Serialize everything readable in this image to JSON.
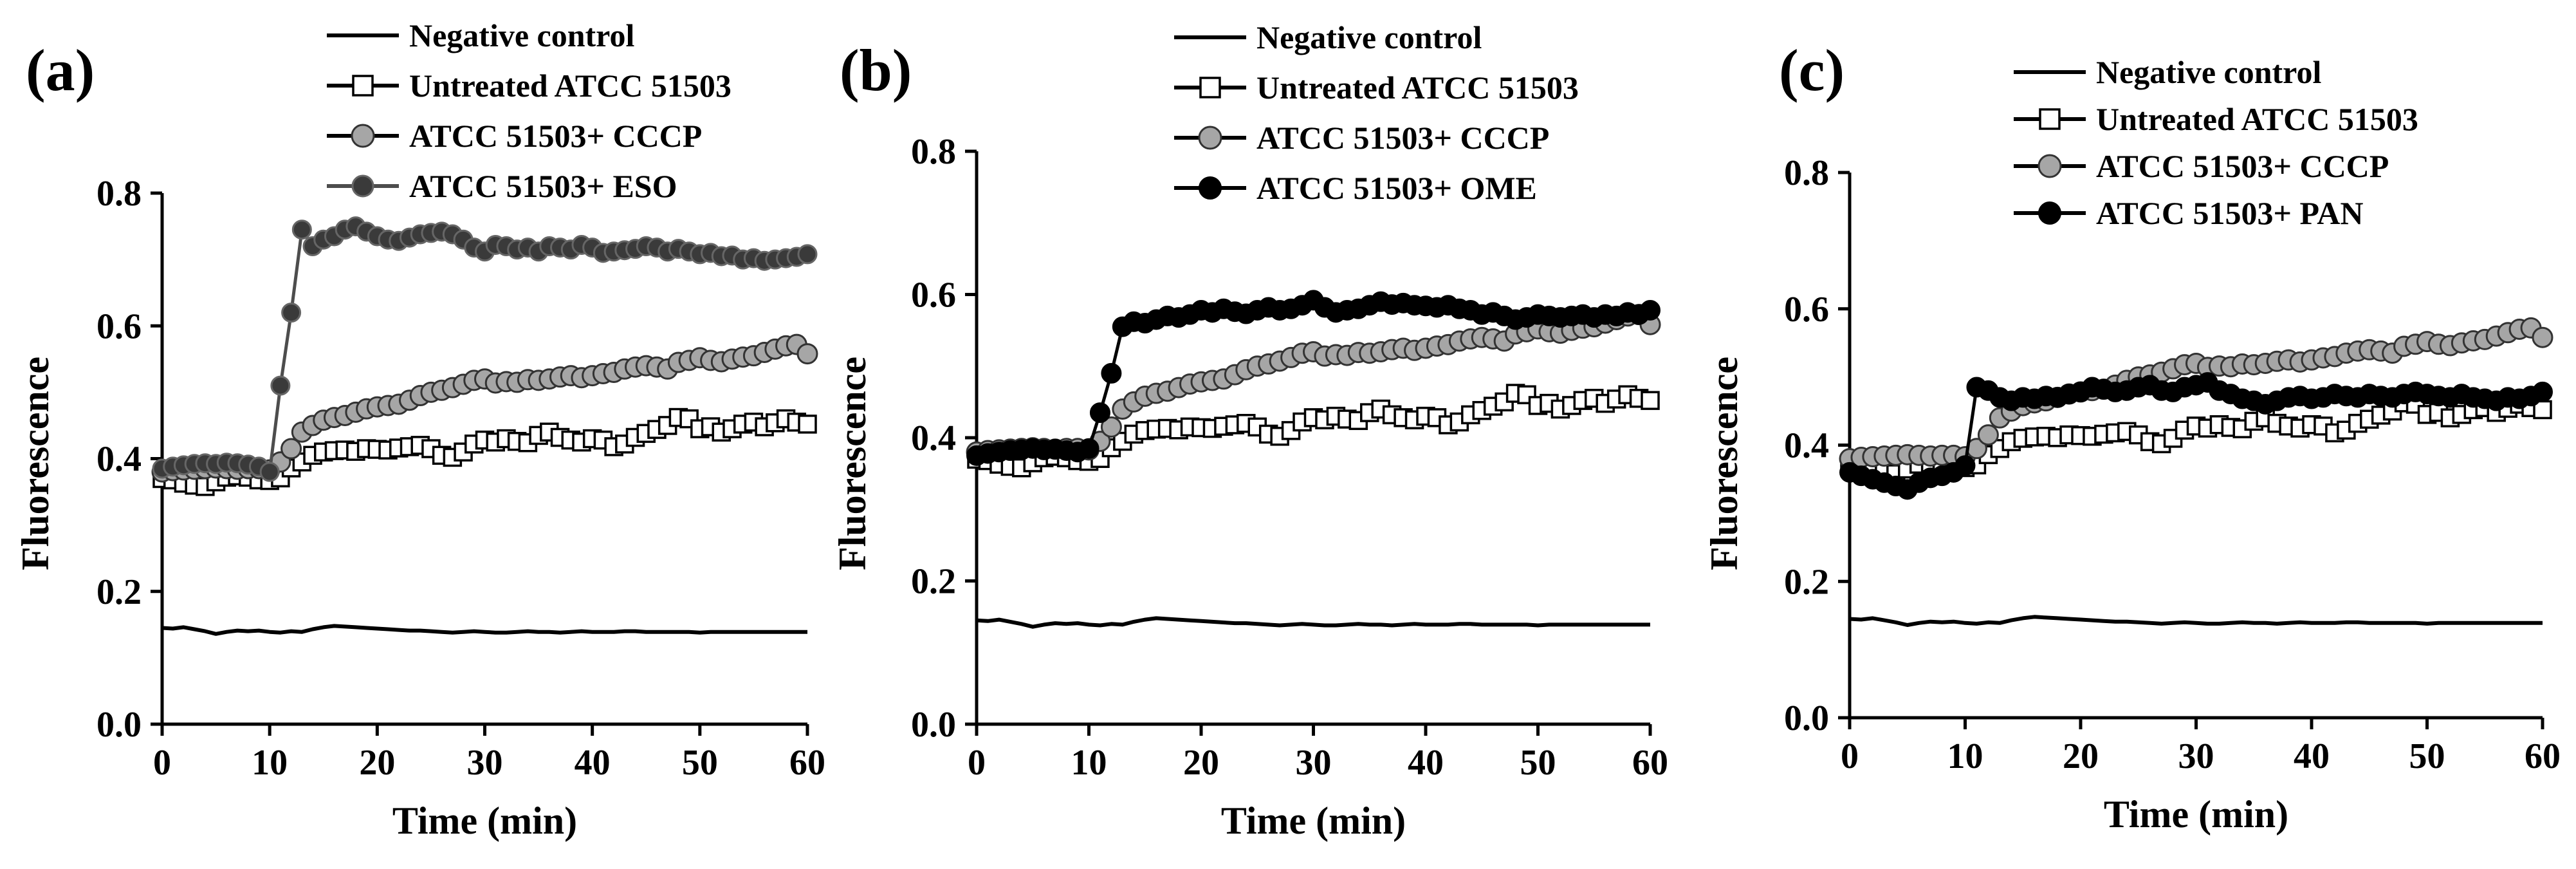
{
  "chart_data": [
    {
      "type": "line",
      "panel_label": "(a)",
      "xlabel": "Time (min)",
      "ylabel": "Fluorescence",
      "xlim": [
        0,
        60
      ],
      "ylim": [
        0.0,
        0.8
      ],
      "xticks": [
        "0",
        "10",
        "20",
        "30",
        "40",
        "50",
        "60"
      ],
      "yticks": [
        "0.0",
        "0.2",
        "0.4",
        "0.6",
        "0.8"
      ],
      "legend_position": "top",
      "series": [
        {
          "name": "Negative control",
          "marker": "none",
          "color": "#000000",
          "values": [
            0.145,
            0.144,
            0.146,
            0.143,
            0.14,
            0.136,
            0.139,
            0.141,
            0.14,
            0.141,
            0.139,
            0.138,
            0.14,
            0.139,
            0.143,
            0.146,
            0.148,
            0.147,
            0.146,
            0.145,
            0.144,
            0.143,
            0.142,
            0.141,
            0.141,
            0.14,
            0.139,
            0.138,
            0.139,
            0.14,
            0.139,
            0.138,
            0.138,
            0.139,
            0.14,
            0.139,
            0.139,
            0.138,
            0.139,
            0.14,
            0.139,
            0.139,
            0.139,
            0.14,
            0.14,
            0.139,
            0.139,
            0.139,
            0.139,
            0.139,
            0.138,
            0.139,
            0.139,
            0.139,
            0.139,
            0.139,
            0.139,
            0.139,
            0.139,
            0.139,
            0.139
          ]
        },
        {
          "name": "Untreated ATCC 51503",
          "marker": "open-square",
          "color": "#000000",
          "values": [
            0.37,
            0.368,
            0.363,
            0.36,
            0.358,
            0.365,
            0.372,
            0.374,
            0.372,
            0.368,
            0.367,
            0.371,
            0.386,
            0.395,
            0.405,
            0.41,
            0.412,
            0.413,
            0.411,
            0.415,
            0.414,
            0.413,
            0.416,
            0.418,
            0.42,
            0.415,
            0.405,
            0.402,
            0.41,
            0.422,
            0.428,
            0.425,
            0.43,
            0.426,
            0.424,
            0.435,
            0.44,
            0.432,
            0.428,
            0.425,
            0.43,
            0.428,
            0.418,
            0.422,
            0.432,
            0.438,
            0.444,
            0.45,
            0.462,
            0.46,
            0.445,
            0.448,
            0.44,
            0.445,
            0.452,
            0.455,
            0.448,
            0.454,
            0.46,
            0.455,
            0.452
          ]
        },
        {
          "name": "ATCC 51503+ CCCP",
          "marker": "filled-circle-grey",
          "color": "#a6a6a6",
          "values": [
            0.38,
            0.382,
            0.383,
            0.384,
            0.385,
            0.386,
            0.385,
            0.384,
            0.385,
            0.385,
            0.383,
            0.395,
            0.415,
            0.44,
            0.45,
            0.458,
            0.462,
            0.465,
            0.47,
            0.475,
            0.478,
            0.48,
            0.482,
            0.488,
            0.495,
            0.5,
            0.503,
            0.507,
            0.512,
            0.518,
            0.52,
            0.514,
            0.516,
            0.515,
            0.519,
            0.518,
            0.52,
            0.523,
            0.525,
            0.522,
            0.525,
            0.528,
            0.53,
            0.535,
            0.538,
            0.54,
            0.538,
            0.535,
            0.545,
            0.548,
            0.552,
            0.548,
            0.546,
            0.55,
            0.553,
            0.555,
            0.56,
            0.565,
            0.57,
            0.572,
            0.558
          ]
        },
        {
          "name": "ATCC 51503+ ESO",
          "marker": "filled-circle-dark",
          "color": "#4d4d4d",
          "values": [
            0.385,
            0.388,
            0.39,
            0.392,
            0.393,
            0.392,
            0.394,
            0.393,
            0.391,
            0.388,
            0.38,
            0.51,
            0.62,
            0.745,
            0.72,
            0.73,
            0.735,
            0.745,
            0.75,
            0.742,
            0.735,
            0.73,
            0.728,
            0.733,
            0.738,
            0.74,
            0.742,
            0.738,
            0.73,
            0.718,
            0.712,
            0.722,
            0.72,
            0.715,
            0.718,
            0.712,
            0.72,
            0.718,
            0.715,
            0.722,
            0.718,
            0.71,
            0.712,
            0.714,
            0.716,
            0.72,
            0.718,
            0.712,
            0.716,
            0.712,
            0.708,
            0.71,
            0.705,
            0.706,
            0.7,
            0.702,
            0.698,
            0.7,
            0.702,
            0.704,
            0.708
          ]
        }
      ]
    },
    {
      "type": "line",
      "panel_label": "(b)",
      "xlabel": "Time (min)",
      "ylabel": "Fluorescence",
      "xlim": [
        0,
        60
      ],
      "ylim": [
        0.0,
        0.8
      ],
      "xticks": [
        "0",
        "10",
        "20",
        "30",
        "40",
        "50",
        "60"
      ],
      "yticks": [
        "0.0",
        "0.2",
        "0.4",
        "0.6",
        "0.8"
      ],
      "legend_position": "top",
      "series": [
        {
          "name": "Negative control",
          "marker": "none",
          "color": "#000000",
          "values": [
            0.145,
            0.144,
            0.146,
            0.143,
            0.14,
            0.136,
            0.139,
            0.141,
            0.14,
            0.141,
            0.139,
            0.138,
            0.14,
            0.139,
            0.143,
            0.146,
            0.148,
            0.147,
            0.146,
            0.145,
            0.144,
            0.143,
            0.142,
            0.141,
            0.141,
            0.14,
            0.139,
            0.138,
            0.139,
            0.14,
            0.139,
            0.138,
            0.138,
            0.139,
            0.14,
            0.139,
            0.139,
            0.138,
            0.139,
            0.14,
            0.139,
            0.139,
            0.139,
            0.14,
            0.14,
            0.139,
            0.139,
            0.139,
            0.139,
            0.139,
            0.138,
            0.139,
            0.139,
            0.139,
            0.139,
            0.139,
            0.139,
            0.139,
            0.139,
            0.139,
            0.139
          ]
        },
        {
          "name": "Untreated ATCC 51503",
          "marker": "open-square",
          "color": "#000000",
          "values": [
            0.37,
            0.368,
            0.363,
            0.36,
            0.358,
            0.365,
            0.372,
            0.374,
            0.372,
            0.368,
            0.367,
            0.371,
            0.386,
            0.395,
            0.405,
            0.41,
            0.412,
            0.413,
            0.411,
            0.415,
            0.414,
            0.413,
            0.416,
            0.418,
            0.42,
            0.415,
            0.405,
            0.402,
            0.41,
            0.422,
            0.428,
            0.425,
            0.43,
            0.426,
            0.424,
            0.435,
            0.44,
            0.432,
            0.428,
            0.425,
            0.43,
            0.428,
            0.418,
            0.422,
            0.432,
            0.438,
            0.444,
            0.45,
            0.462,
            0.46,
            0.445,
            0.448,
            0.44,
            0.445,
            0.452,
            0.455,
            0.448,
            0.454,
            0.46,
            0.455,
            0.452
          ]
        },
        {
          "name": "ATCC 51503+ CCCP",
          "marker": "filled-circle-grey",
          "color": "#a6a6a6",
          "values": [
            0.38,
            0.382,
            0.383,
            0.384,
            0.385,
            0.386,
            0.385,
            0.384,
            0.385,
            0.385,
            0.383,
            0.395,
            0.415,
            0.44,
            0.45,
            0.458,
            0.462,
            0.465,
            0.47,
            0.475,
            0.478,
            0.48,
            0.482,
            0.488,
            0.495,
            0.5,
            0.503,
            0.507,
            0.512,
            0.518,
            0.52,
            0.514,
            0.516,
            0.515,
            0.519,
            0.518,
            0.52,
            0.523,
            0.525,
            0.522,
            0.525,
            0.528,
            0.53,
            0.535,
            0.538,
            0.54,
            0.538,
            0.535,
            0.545,
            0.548,
            0.552,
            0.548,
            0.546,
            0.55,
            0.553,
            0.555,
            0.56,
            0.565,
            0.57,
            0.572,
            0.558
          ]
        },
        {
          "name": "ATCC 51503+ OME",
          "marker": "filled-circle-black",
          "color": "#000000",
          "values": [
            0.375,
            0.378,
            0.38,
            0.382,
            0.383,
            0.385,
            0.383,
            0.384,
            0.382,
            0.38,
            0.385,
            0.435,
            0.49,
            0.555,
            0.562,
            0.56,
            0.565,
            0.57,
            0.568,
            0.572,
            0.578,
            0.575,
            0.58,
            0.576,
            0.573,
            0.578,
            0.582,
            0.578,
            0.58,
            0.585,
            0.592,
            0.582,
            0.575,
            0.578,
            0.58,
            0.585,
            0.59,
            0.586,
            0.588,
            0.585,
            0.584,
            0.582,
            0.585,
            0.58,
            0.578,
            0.572,
            0.575,
            0.57,
            0.565,
            0.568,
            0.572,
            0.57,
            0.568,
            0.57,
            0.572,
            0.568,
            0.572,
            0.57,
            0.575,
            0.572,
            0.578
          ]
        }
      ]
    },
    {
      "type": "line",
      "panel_label": "(c)",
      "xlabel": "Time (min)",
      "ylabel": "Fluorescence",
      "xlim": [
        0,
        60
      ],
      "ylim": [
        0.0,
        0.8
      ],
      "xticks": [
        "0",
        "10",
        "20",
        "30",
        "40",
        "50",
        "60"
      ],
      "yticks": [
        "0.0",
        "0.2",
        "0.4",
        "0.6",
        "0.8"
      ],
      "legend_position": "top",
      "series": [
        {
          "name": "Negative control",
          "marker": "none",
          "color": "#000000",
          "values": [
            0.145,
            0.144,
            0.146,
            0.143,
            0.14,
            0.136,
            0.139,
            0.141,
            0.14,
            0.141,
            0.139,
            0.138,
            0.14,
            0.139,
            0.143,
            0.146,
            0.148,
            0.147,
            0.146,
            0.145,
            0.144,
            0.143,
            0.142,
            0.141,
            0.141,
            0.14,
            0.139,
            0.138,
            0.139,
            0.14,
            0.139,
            0.138,
            0.138,
            0.139,
            0.14,
            0.139,
            0.139,
            0.138,
            0.139,
            0.14,
            0.139,
            0.139,
            0.139,
            0.14,
            0.14,
            0.139,
            0.139,
            0.139,
            0.139,
            0.139,
            0.138,
            0.139,
            0.139,
            0.139,
            0.139,
            0.139,
            0.139,
            0.139,
            0.139,
            0.139,
            0.139
          ]
        },
        {
          "name": "Untreated ATCC 51503",
          "marker": "open-square",
          "color": "#000000",
          "values": [
            0.37,
            0.368,
            0.363,
            0.36,
            0.358,
            0.365,
            0.372,
            0.374,
            0.372,
            0.368,
            0.367,
            0.371,
            0.386,
            0.395,
            0.405,
            0.41,
            0.412,
            0.413,
            0.411,
            0.415,
            0.414,
            0.413,
            0.416,
            0.418,
            0.42,
            0.415,
            0.405,
            0.402,
            0.41,
            0.422,
            0.428,
            0.425,
            0.43,
            0.426,
            0.424,
            0.435,
            0.44,
            0.432,
            0.428,
            0.425,
            0.43,
            0.428,
            0.418,
            0.422,
            0.432,
            0.438,
            0.444,
            0.45,
            0.462,
            0.46,
            0.445,
            0.448,
            0.44,
            0.445,
            0.452,
            0.455,
            0.448,
            0.454,
            0.46,
            0.455,
            0.452
          ]
        },
        {
          "name": "ATCC 51503+ CCCP",
          "marker": "filled-circle-grey",
          "color": "#a6a6a6",
          "values": [
            0.38,
            0.382,
            0.383,
            0.384,
            0.385,
            0.386,
            0.385,
            0.384,
            0.385,
            0.385,
            0.383,
            0.395,
            0.415,
            0.44,
            0.45,
            0.458,
            0.462,
            0.465,
            0.47,
            0.475,
            0.478,
            0.48,
            0.482,
            0.488,
            0.495,
            0.5,
            0.503,
            0.507,
            0.512,
            0.518,
            0.52,
            0.514,
            0.516,
            0.515,
            0.519,
            0.518,
            0.52,
            0.523,
            0.525,
            0.522,
            0.525,
            0.528,
            0.53,
            0.535,
            0.538,
            0.54,
            0.538,
            0.535,
            0.545,
            0.548,
            0.552,
            0.548,
            0.546,
            0.55,
            0.553,
            0.555,
            0.56,
            0.565,
            0.57,
            0.572,
            0.558
          ]
        },
        {
          "name": "ATCC 51503+ PAN",
          "marker": "filled-circle-black",
          "color": "#000000",
          "values": [
            0.36,
            0.355,
            0.35,
            0.345,
            0.34,
            0.335,
            0.345,
            0.352,
            0.355,
            0.36,
            0.37,
            0.485,
            0.48,
            0.47,
            0.465,
            0.47,
            0.468,
            0.472,
            0.47,
            0.475,
            0.478,
            0.485,
            0.482,
            0.478,
            0.48,
            0.485,
            0.488,
            0.48,
            0.478,
            0.485,
            0.488,
            0.492,
            0.48,
            0.475,
            0.468,
            0.465,
            0.46,
            0.465,
            0.47,
            0.472,
            0.468,
            0.47,
            0.475,
            0.472,
            0.47,
            0.475,
            0.472,
            0.47,
            0.475,
            0.478,
            0.475,
            0.472,
            0.47,
            0.475,
            0.47,
            0.468,
            0.465,
            0.47,
            0.468,
            0.472,
            0.478
          ]
        }
      ]
    }
  ]
}
